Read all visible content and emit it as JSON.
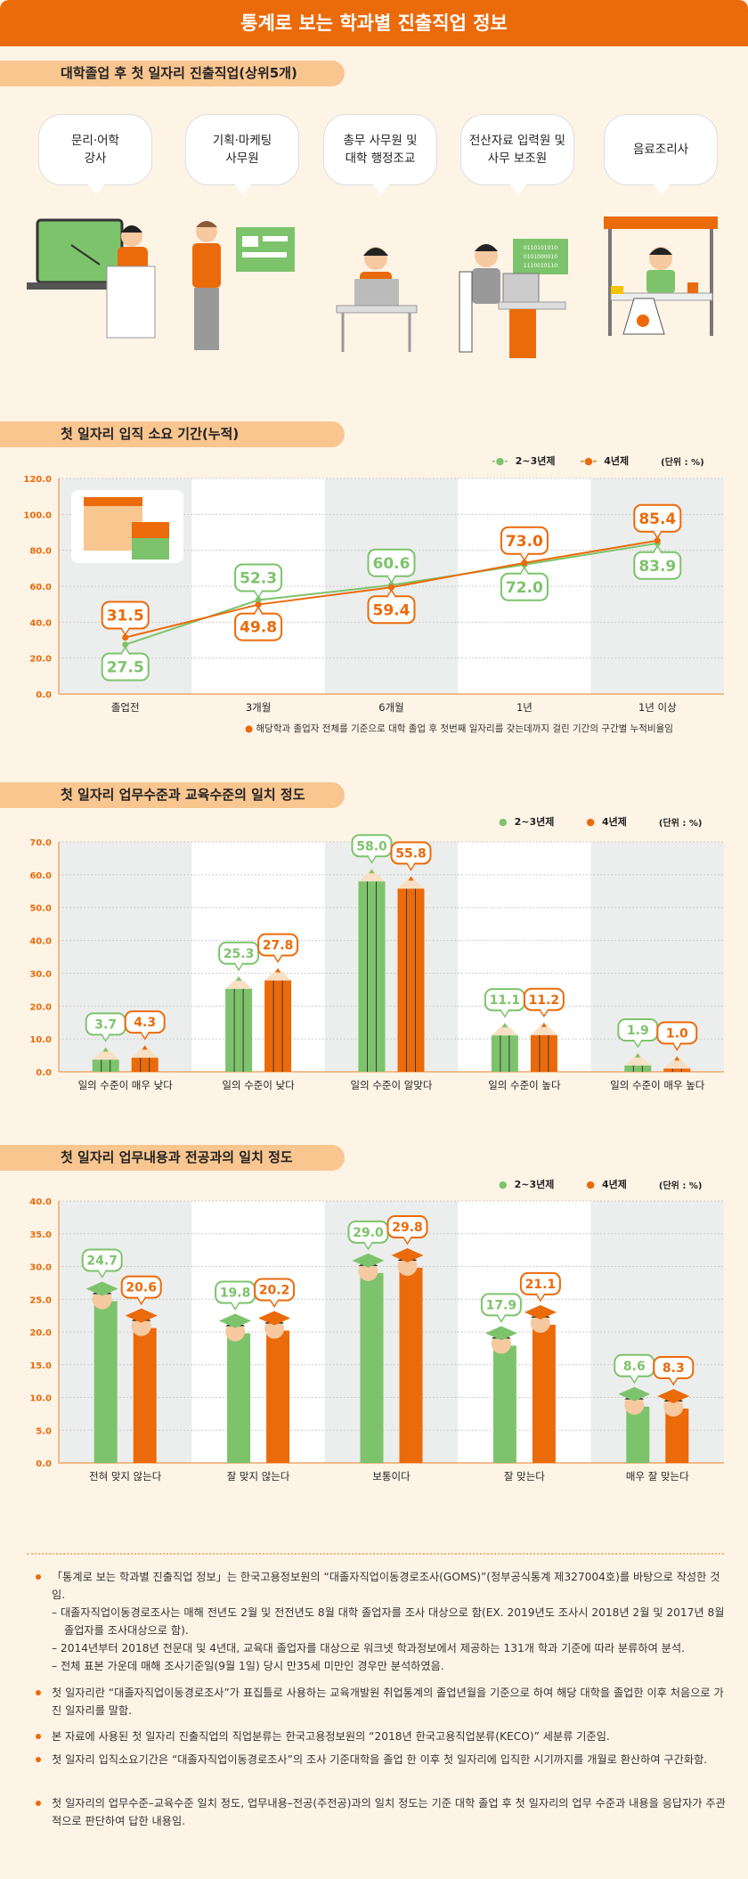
{
  "header": {
    "title": "통계로 보는 학과별 진출직업 정보"
  },
  "section1": {
    "title": "대학졸업 후 첫 일자리 진출직업(상위5개)",
    "jobs": [
      "문리·어학\n강사",
      "기획·마케팅\n사무원",
      "총무 사무원 및\n대학 행정조교",
      "전산자료 입력원 및\n사무 보조원",
      "음료조리사"
    ],
    "screen_code": "0110101010\n0101000010\n1110010110"
  },
  "colors": {
    "green": "#7dc36b",
    "orange": "#eb6a0a",
    "band": "#eceeed"
  },
  "legend": {
    "a": "2~3년제",
    "b": "4년제",
    "unit": "(단위 : %)"
  },
  "chart_data": [
    {
      "type": "line",
      "title": "첫 일자리 입직 소요 기간(누적)",
      "categories": [
        "졸업전",
        "3개월",
        "6개월",
        "1년",
        "1년 이상"
      ],
      "ylim": [
        0,
        120
      ],
      "yticks": [
        "0.0",
        "20.0",
        "40.0",
        "60.0",
        "80.0",
        "100.0",
        "120.0"
      ],
      "series": [
        {
          "name": "2~3년제",
          "values": [
            27.5,
            52.3,
            60.6,
            72.0,
            83.9
          ]
        },
        {
          "name": "4년제",
          "values": [
            31.5,
            49.8,
            59.4,
            73.0,
            85.4
          ]
        }
      ],
      "note": "해당학과 졸업자 전체를 기준으로 대학 졸업 후 첫번째 일자리를 갖는데까지 걸린 기간의 구간별 누적비율임"
    },
    {
      "type": "bar",
      "title": "첫 일자리 업무수준과 교육수준의 일치 정도",
      "categories": [
        "일의 수준이 매우 낮다",
        "일의 수준이 낮다",
        "일의 수준이 알맞다",
        "일의 수준이 높다",
        "일의 수준이 매우 높다"
      ],
      "ylim": [
        0,
        70
      ],
      "yticks": [
        "0.0",
        "10.0",
        "20.0",
        "30.0",
        "40.0",
        "50.0",
        "60.0",
        "70.0"
      ],
      "series": [
        {
          "name": "2~3년제",
          "values": [
            3.7,
            25.3,
            58.0,
            11.1,
            1.9
          ]
        },
        {
          "name": "4년제",
          "values": [
            4.3,
            27.8,
            55.8,
            11.2,
            1.0
          ]
        }
      ]
    },
    {
      "type": "bar",
      "title": "첫 일자리 업무내용과 전공과의 일치 정도",
      "categories": [
        "전혀 맞지 않는다",
        "잘 맞지 않는다",
        "보통이다",
        "잘 맞는다",
        "매우 잘 맞는다"
      ],
      "ylim": [
        0,
        40
      ],
      "yticks": [
        "0.0",
        "5.0",
        "10.0",
        "15.0",
        "20.0",
        "25.0",
        "30.0",
        "35.0",
        "40.0"
      ],
      "series": [
        {
          "name": "2~3년제",
          "values": [
            24.7,
            19.8,
            29.0,
            17.9,
            8.6
          ]
        },
        {
          "name": "4년제",
          "values": [
            20.6,
            20.2,
            29.8,
            21.1,
            8.3
          ]
        }
      ]
    }
  ],
  "notes": [
    {
      "text": "「통계로 보는 학과별 진출직업 정보」는 한국고용정보원의 “대졸자직업이동경로조사(GOMS)”(정부공식통계 제327004호)를 바탕으로 작성한 것임.",
      "subs": [
        "– 대졸자직업이동경로조사는 매해 전년도 2월 및 전전년도 8월 대학 졸업자를 조사 대상으로 함(EX. 2019년도 조사시 2018년 2월 및 2017년 8월 졸업자를 조사대상으로 함).",
        "– 2014년부터 2018년 전문대 및 4년대, 교육대 졸업자를 대상으로 워크넷 학과정보에서 제공하는 131개 학과 기준에 따라 분류하여 분석.",
        "– 전체 표본 가운데 매해 조사기준일(9월 1일) 당시 만35세 미만인 경우만 분석하였음."
      ]
    },
    {
      "text": "첫 일자리란 “대졸자직업이동경로조사”가 표집틀로 사용하는 교육개발원 취업통계의 졸업년월을 기준으로 하여 해당 대학을 졸업한 이후 처음으로 가진 일자리를 말함."
    },
    {
      "text": "본 자료에 사용된 첫 일자리 진출직업의 직업분류는 한국고용정보원의 “2018년 한국고용직업분류(KECO)” 세분류 기준임."
    },
    {
      "text": "첫 일자리 입직소요기간은 “대졸자직업이동경로조사”의 조사 기준대학을 졸업 한 이후 첫 일자리에 입직한 시기까지를 개월로 환산하여 구간화함."
    },
    {
      "text": "첫 일자리의 업무수준–교육수준 일치 정도, 업무내용–전공(주전공)과의 일치 정도는 기준 대학 졸업 후 첫 일자리의 업무 수준과 내용을 응답자가 주관적으로 판단하여 답한 내용임."
    }
  ]
}
